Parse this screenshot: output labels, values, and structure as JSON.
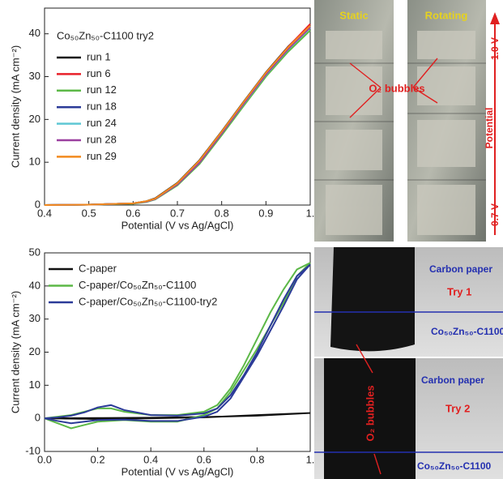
{
  "chart_data": [
    {
      "type": "line",
      "legend_title": "Co₅₀Zn₅₀-C1100 try2",
      "xlabel": "Potential (V vs Ag/AgCl)",
      "ylabel": "Current density (mA cm⁻²)",
      "x": [
        0.4,
        0.5,
        0.6,
        0.63,
        0.65,
        0.7,
        0.75,
        0.8,
        0.85,
        0.9,
        0.95,
        1.0
      ],
      "series": [
        {
          "name": "run 1",
          "color": "#111111",
          "values": [
            0,
            0.1,
            0.4,
            0.9,
            1.6,
            5.2,
            10.5,
            17.2,
            24.2,
            31.0,
            37.0,
            42.0
          ]
        },
        {
          "name": "run 6",
          "color": "#e8202a",
          "values": [
            0,
            0.1,
            0.4,
            0.8,
            1.5,
            5.0,
            10.2,
            17.0,
            24.0,
            30.8,
            36.9,
            42.3
          ]
        },
        {
          "name": "run 12",
          "color": "#5cb847",
          "values": [
            0,
            0.1,
            0.3,
            0.7,
            1.3,
            4.6,
            9.6,
            16.3,
            23.2,
            30.0,
            35.8,
            40.8
          ]
        },
        {
          "name": "run 18",
          "color": "#2c3b98",
          "values": [
            0,
            0.1,
            0.4,
            0.8,
            1.4,
            4.9,
            10.0,
            16.8,
            23.8,
            30.5,
            36.5,
            41.6
          ]
        },
        {
          "name": "run 24",
          "color": "#5ec7d4",
          "values": [
            0,
            0.1,
            0.4,
            0.8,
            1.4,
            4.8,
            9.9,
            16.7,
            23.6,
            30.4,
            36.3,
            41.4
          ]
        },
        {
          "name": "run 28",
          "color": "#9b3fa0",
          "values": [
            0,
            0.1,
            0.4,
            0.8,
            1.4,
            4.8,
            9.9,
            16.7,
            23.7,
            30.5,
            36.4,
            41.5
          ]
        },
        {
          "name": "run 29",
          "color": "#f28a1e",
          "values": [
            0,
            0.1,
            0.4,
            0.9,
            1.5,
            5.1,
            10.4,
            17.1,
            24.1,
            30.9,
            36.8,
            41.9
          ]
        }
      ],
      "xlim": [
        0.4,
        1.0
      ],
      "xticks": [
        0.4,
        0.5,
        0.6,
        0.7,
        0.8,
        0.9,
        {
          "value": 1.0,
          "label": "1."
        }
      ],
      "ylim": [
        0,
        46
      ],
      "yticks": [
        0,
        10,
        20,
        30,
        40
      ]
    },
    {
      "type": "line",
      "xlabel": "Potential (V vs Ag/AgCl)",
      "ylabel": "Current density (mA cm⁻²)",
      "series": [
        {
          "name": "C-paper",
          "color": "#111111",
          "x": [
            0,
            0.2,
            0.4,
            0.6,
            0.8,
            1.0,
            0.8,
            0.6,
            0.4,
            0.2,
            0
          ],
          "values": [
            0,
            0.1,
            0.2,
            0.4,
            0.8,
            1.6,
            1.0,
            0.3,
            0,
            -0.2,
            0
          ]
        },
        {
          "name": "C-paper/Co₅₀Zn₅₀-C1100",
          "color": "#5cb847",
          "x": [
            0,
            0.05,
            0.1,
            0.15,
            0.2,
            0.25,
            0.3,
            0.4,
            0.5,
            0.6,
            0.65,
            0.7,
            0.75,
            0.8,
            0.85,
            0.9,
            0.95,
            1.0,
            0.95,
            0.9,
            0.8,
            0.7,
            0.65,
            0.6,
            0.5,
            0.4,
            0.3,
            0.2,
            0.15,
            0.1,
            0.05,
            0
          ],
          "values": [
            0,
            0.5,
            1,
            2,
            3,
            3,
            2,
            1,
            1,
            2,
            4,
            9,
            16,
            24,
            32,
            39,
            45,
            47,
            43,
            35,
            21,
            8,
            3,
            1,
            -1,
            -1,
            -0.5,
            -1,
            -2,
            -3,
            -1.5,
            0
          ]
        },
        {
          "name": "C-paper/Co₅₀Zn₅₀-C1100-try2",
          "color": "#2c3b98",
          "x": [
            0,
            0.05,
            0.1,
            0.15,
            0.2,
            0.25,
            0.3,
            0.4,
            0.5,
            0.6,
            0.65,
            0.7,
            0.75,
            0.8,
            0.85,
            0.9,
            0.95,
            1.0,
            0.95,
            0.9,
            0.8,
            0.7,
            0.65,
            0.6,
            0.5,
            0.4,
            0.3,
            0.2,
            0.15,
            0.1,
            0.05,
            0
          ],
          "values": [
            0,
            0.3,
            0.8,
            1.8,
            3.3,
            4,
            2.5,
            1,
            0.8,
            1.5,
            3,
            7,
            13,
            20,
            28,
            36,
            43,
            46.5,
            42,
            34,
            19,
            6,
            2,
            0.5,
            -0.8,
            -0.8,
            -0.4,
            -0.5,
            -1,
            -1.5,
            -0.8,
            0
          ]
        }
      ],
      "xlim": [
        0,
        1.0
      ],
      "xticks": [
        {
          "value": 0,
          "label": "0.0"
        },
        0.2,
        0.4,
        0.6,
        0.8,
        {
          "value": 1.0,
          "label": "1."
        }
      ],
      "ylim": [
        -10,
        50
      ],
      "yticks": [
        -10,
        0,
        10,
        20,
        30,
        40,
        50
      ]
    }
  ],
  "photos": {
    "static": "Static",
    "rotating": "Rotating",
    "bubbles_top": "O₂ bubbles",
    "v_high": "1.0 V",
    "potential": "Potential",
    "v_low": "0.7 V",
    "carbon_paper_1": "Carbon paper",
    "try1": "Try 1",
    "sample_1": "Co₅₀Zn₅₀-C1100",
    "carbon_paper_2": "Carbon paper",
    "try2": "Try 2",
    "sample_2": "Co₅₀Zn₅₀-C1100",
    "bubbles_bottom": "O₂ bubbles"
  }
}
